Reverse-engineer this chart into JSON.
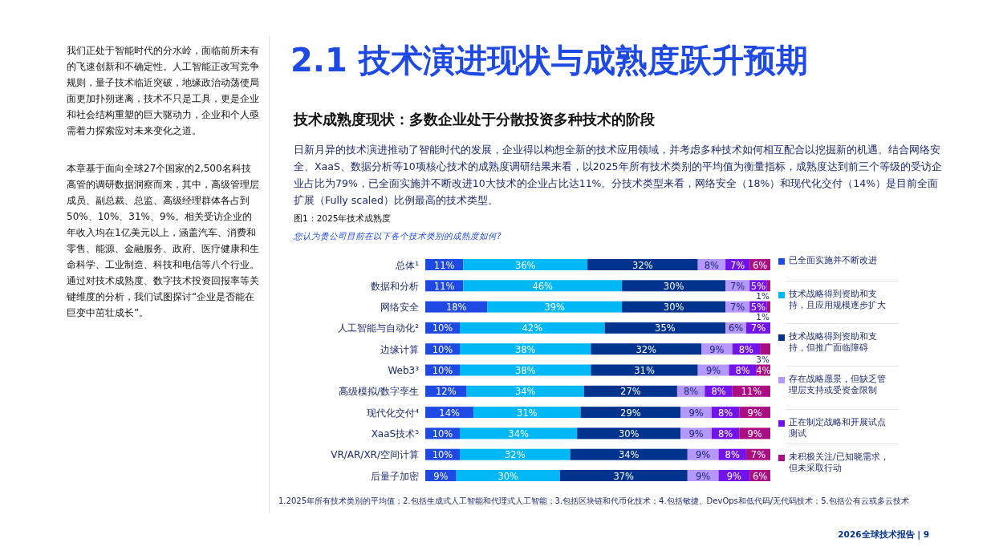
{
  "chart_data": {
    "type": "bar",
    "orientation": "horizontal",
    "stacked": true,
    "title": "图1：2025年技术成熟度",
    "subtitle": "您认为贵公司目前在以下各个技术类别的成熟度如何?",
    "categories": [
      "总体¹",
      "数据和分析",
      "网络安全",
      "人工智能与自动化²",
      "边缘计算",
      "Web3³",
      "高级模拟/数字孪生",
      "现代化交付⁴",
      "XaaS技术⁵",
      "VR/AR/XR/空间计算",
      "后量子加密"
    ],
    "series": [
      {
        "name": "已全面实施并不断改进",
        "color": "#1e49e2",
        "values": [
          11,
          11,
          18,
          10,
          10,
          10,
          12,
          14,
          10,
          10,
          9
        ],
        "value_labels": [
          "11%",
          "11%",
          "18%",
          "10%",
          "10%",
          "10%",
          "12%",
          "14%",
          "10%",
          "10%",
          "9%"
        ]
      },
      {
        "name": "技术战略得到资助和支持，且应用规模逐步扩大",
        "color": "#00b8f5",
        "values": [
          36,
          46,
          39,
          42,
          38,
          38,
          34,
          31,
          34,
          32,
          30
        ],
        "value_labels": [
          "36%",
          "46%",
          "39%",
          "42%",
          "38%",
          "38%",
          "34%",
          "31%",
          "34%",
          "32%",
          "30%"
        ]
      },
      {
        "name": "技术战略得到资助和支持，但推广面临障碍",
        "color": "#00338d",
        "values": [
          32,
          30,
          30,
          35,
          32,
          31,
          27,
          29,
          30,
          34,
          37
        ],
        "value_labels": [
          "32%",
          "30%",
          "30%",
          "35%",
          "32%",
          "31%",
          "27%",
          "29%",
          "30%",
          "34%",
          "37%"
        ]
      },
      {
        "name": "存在战略愿景，但缺乏管理层支持或受资金限制",
        "color": "#b497ff",
        "values": [
          8,
          7,
          7,
          6,
          9,
          9,
          8,
          9,
          9,
          9,
          9
        ],
        "value_labels": [
          "8%",
          "7%",
          "7%",
          "6%",
          "9%",
          "9%",
          "8%",
          "9%",
          "9%",
          "9%",
          "9%"
        ]
      },
      {
        "name": "正在制定战略和开展试点测试",
        "color": "#7213ea",
        "values": [
          7,
          5,
          5,
          7,
          8,
          8,
          8,
          8,
          8,
          8,
          9
        ],
        "value_labels": [
          "7%",
          "5%",
          "5%",
          "7%",
          "8%",
          "8%",
          "8%",
          "8%",
          "8%",
          "8%",
          "9%"
        ]
      },
      {
        "name": "未积极关注/已知晓需求，但未采取行动",
        "color": "#ab0d82",
        "values": [
          6,
          1,
          1,
          0,
          3,
          4,
          11,
          9,
          9,
          7,
          6
        ],
        "value_labels": [
          "6%",
          "1%",
          "1%",
          null,
          "3%",
          "4%",
          "11%",
          "9%",
          "9%",
          "7%",
          "6%"
        ]
      }
    ],
    "xlim": [
      0,
      100
    ],
    "tick_labels": false,
    "legend": "right",
    "annotations": [
      "2.1 技术演进现状与成熟度跃升预期",
      "技术成熟度现状：多数企业处于分散投资多种技术的阶段",
      "日新月异的技术演进推动了智能时代的发展，企业得以构想全新的技术应用领域，并考虑多种技术如何相互配合以挖掘新的机遇。结合网络安全、XaaS、数据分析等10项核心技术的成熟度调研结果来看，以2025年所有技术类别的平均值为衡量指标，成熟度达到前三个等级的受访企业占比为79%，已全面实施并不断改进10大技术的企业占比达11%。分技术类型来看，网络安全（18%）和现代化交付（14%）是目前全面扩展（Fully scaled）比例最高的技术类型。",
      "我们正处于智能时代的分水岭，面临前所未有的飞速创新和不确定性。人工智能正改写竞争规则，量子技术临近突破，地缘政治动荡使局面更加扑朔迷离，技术不只是工具，更是企业和社会结构重塑的巨大驱动力，企业和个人亟需着力探索应对未来变化之道。",
      "本章基于面向全球27个国家的2,500名科技高管的调研数据洞察而来，其中，高级管理层成员、副总裁、总监、高级经理群体各占到50%、10%、31%、9%。相关受访企业的年收入均在1亿美元以上，涵盖汽车、消费和零售、能源、金融服务、政府、医疗健康和生命科学、工业制造、科技和电信等八个行业。通过对技术成熟度、数字技术投资回报率等关键维度的分析，我们试图探讨“企业是否能在巨变中茁壮成长”。",
      "1.2025年所有技术类别的平均值；2.包括生成式人工智能和代理式人工智能；3.包括区块链和代币化技术；4.包括敏捷、DevOps和低代码/无代码技术；5.包括公有云或多云技术",
      "2026全球技术报告 | 9"
    ]
  }
}
